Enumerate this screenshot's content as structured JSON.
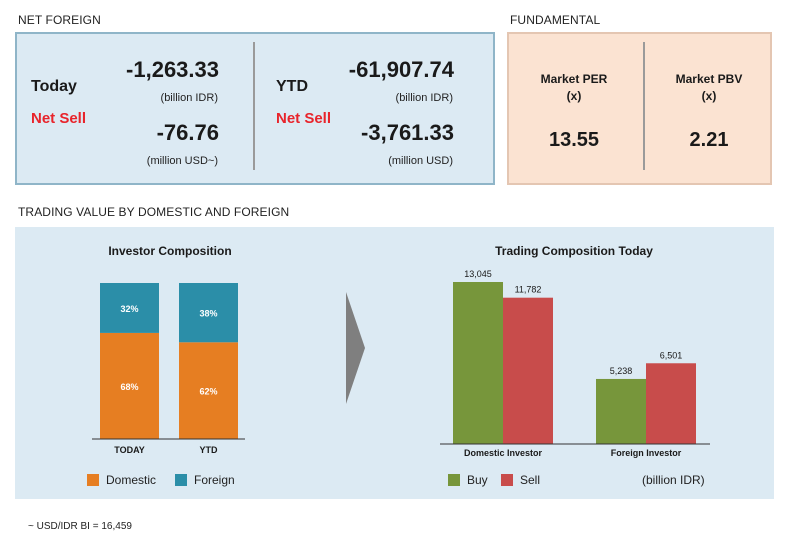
{
  "net_foreign": {
    "section_title": "NET FOREIGN",
    "today": {
      "label": "Today",
      "status": "Net Sell",
      "value_idr": "-1,263.33",
      "unit_idr": "(billion IDR)",
      "value_usd": "-76.76",
      "unit_usd": "(million USD~)"
    },
    "ytd": {
      "label": "YTD",
      "status": "Net Sell",
      "value_idr": "-61,907.74",
      "unit_idr": "(billion IDR)",
      "value_usd": "-3,761.33",
      "unit_usd": "(million USD)"
    }
  },
  "fundamental": {
    "section_title": "FUNDAMENTAL",
    "per": {
      "label": "Market PER",
      "unit": "(x)",
      "value": "13.55"
    },
    "pbv": {
      "label": "Market PBV",
      "unit": "(x)",
      "value": "2.21"
    }
  },
  "trading_value": {
    "section_title": "TRADING VALUE BY DOMESTIC AND FOREIGN"
  },
  "colors": {
    "domestic": "#e67e22",
    "foreign": "#2b8ea8",
    "buy": "#77963b",
    "sell": "#c84c4b"
  },
  "chart_data": [
    {
      "type": "bar",
      "stacked": true,
      "percent": true,
      "title": "Investor Composition",
      "categories": [
        "TODAY",
        "YTD"
      ],
      "series": [
        {
          "name": "Domestic",
          "values": [
            68,
            62
          ],
          "labels": [
            "68%",
            "62%"
          ]
        },
        {
          "name": "Foreign",
          "values": [
            32,
            38
          ],
          "labels": [
            "32%",
            "38%"
          ]
        }
      ],
      "ylim": [
        0,
        100
      ],
      "legend": "bottom"
    },
    {
      "type": "bar",
      "title": "Trading Composition Today",
      "categories": [
        "Domestic Investor",
        "Foreign Investor"
      ],
      "series": [
        {
          "name": "Buy",
          "values": [
            13045,
            5238
          ],
          "labels": [
            "13,045",
            "5,238"
          ]
        },
        {
          "name": "Sell",
          "values": [
            11782,
            6501
          ],
          "labels": [
            "11,782",
            "6,501"
          ]
        }
      ],
      "unit_note": "(billion IDR)",
      "ylim": [
        0,
        13800
      ],
      "legend": "bottom"
    }
  ],
  "footnote": "~ USD/IDR BI = 16,459"
}
